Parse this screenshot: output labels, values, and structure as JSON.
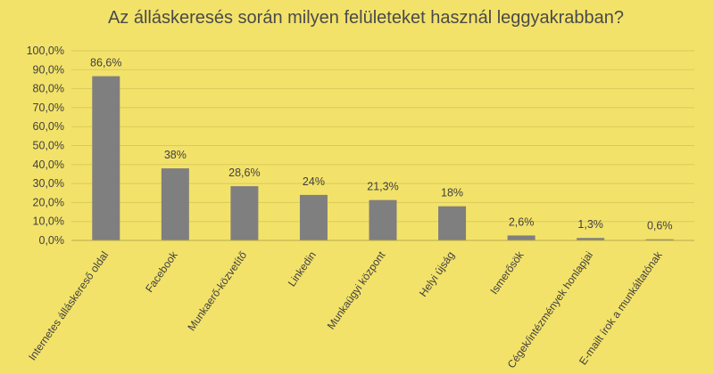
{
  "chart_data": {
    "type": "bar",
    "title": "Az álláskeresés során milyen felületeket használ leggyakrabban?",
    "categories": [
      "Internetes álláskereső oldal",
      "Facebook",
      "Munkaerő-közvetítő",
      "Linkedin",
      "Munkaügyi központ",
      "Helyi újság",
      "Ismerősök",
      "Cégek/intézmények honlapjai",
      "E-mailt írok a munkáltatónak"
    ],
    "values": [
      86.6,
      38,
      28.6,
      24,
      21.3,
      18,
      2.6,
      1.3,
      0.6
    ],
    "data_labels": [
      "86,6%",
      "38%",
      "28,6%",
      "24%",
      "21,3%",
      "18%",
      "2,6%",
      "1,3%",
      "0,6%"
    ],
    "yticks": [
      "0,0%",
      "10,0%",
      "20,0%",
      "30,0%",
      "40,0%",
      "50,0%",
      "60,0%",
      "70,0%",
      "80,0%",
      "90,0%",
      "100,0%"
    ],
    "ylim": [
      0,
      100
    ],
    "grid": true,
    "colors": {
      "background": "#f3e26a",
      "bar": "#7f7f7f",
      "gridline": "#d9c95a"
    }
  }
}
